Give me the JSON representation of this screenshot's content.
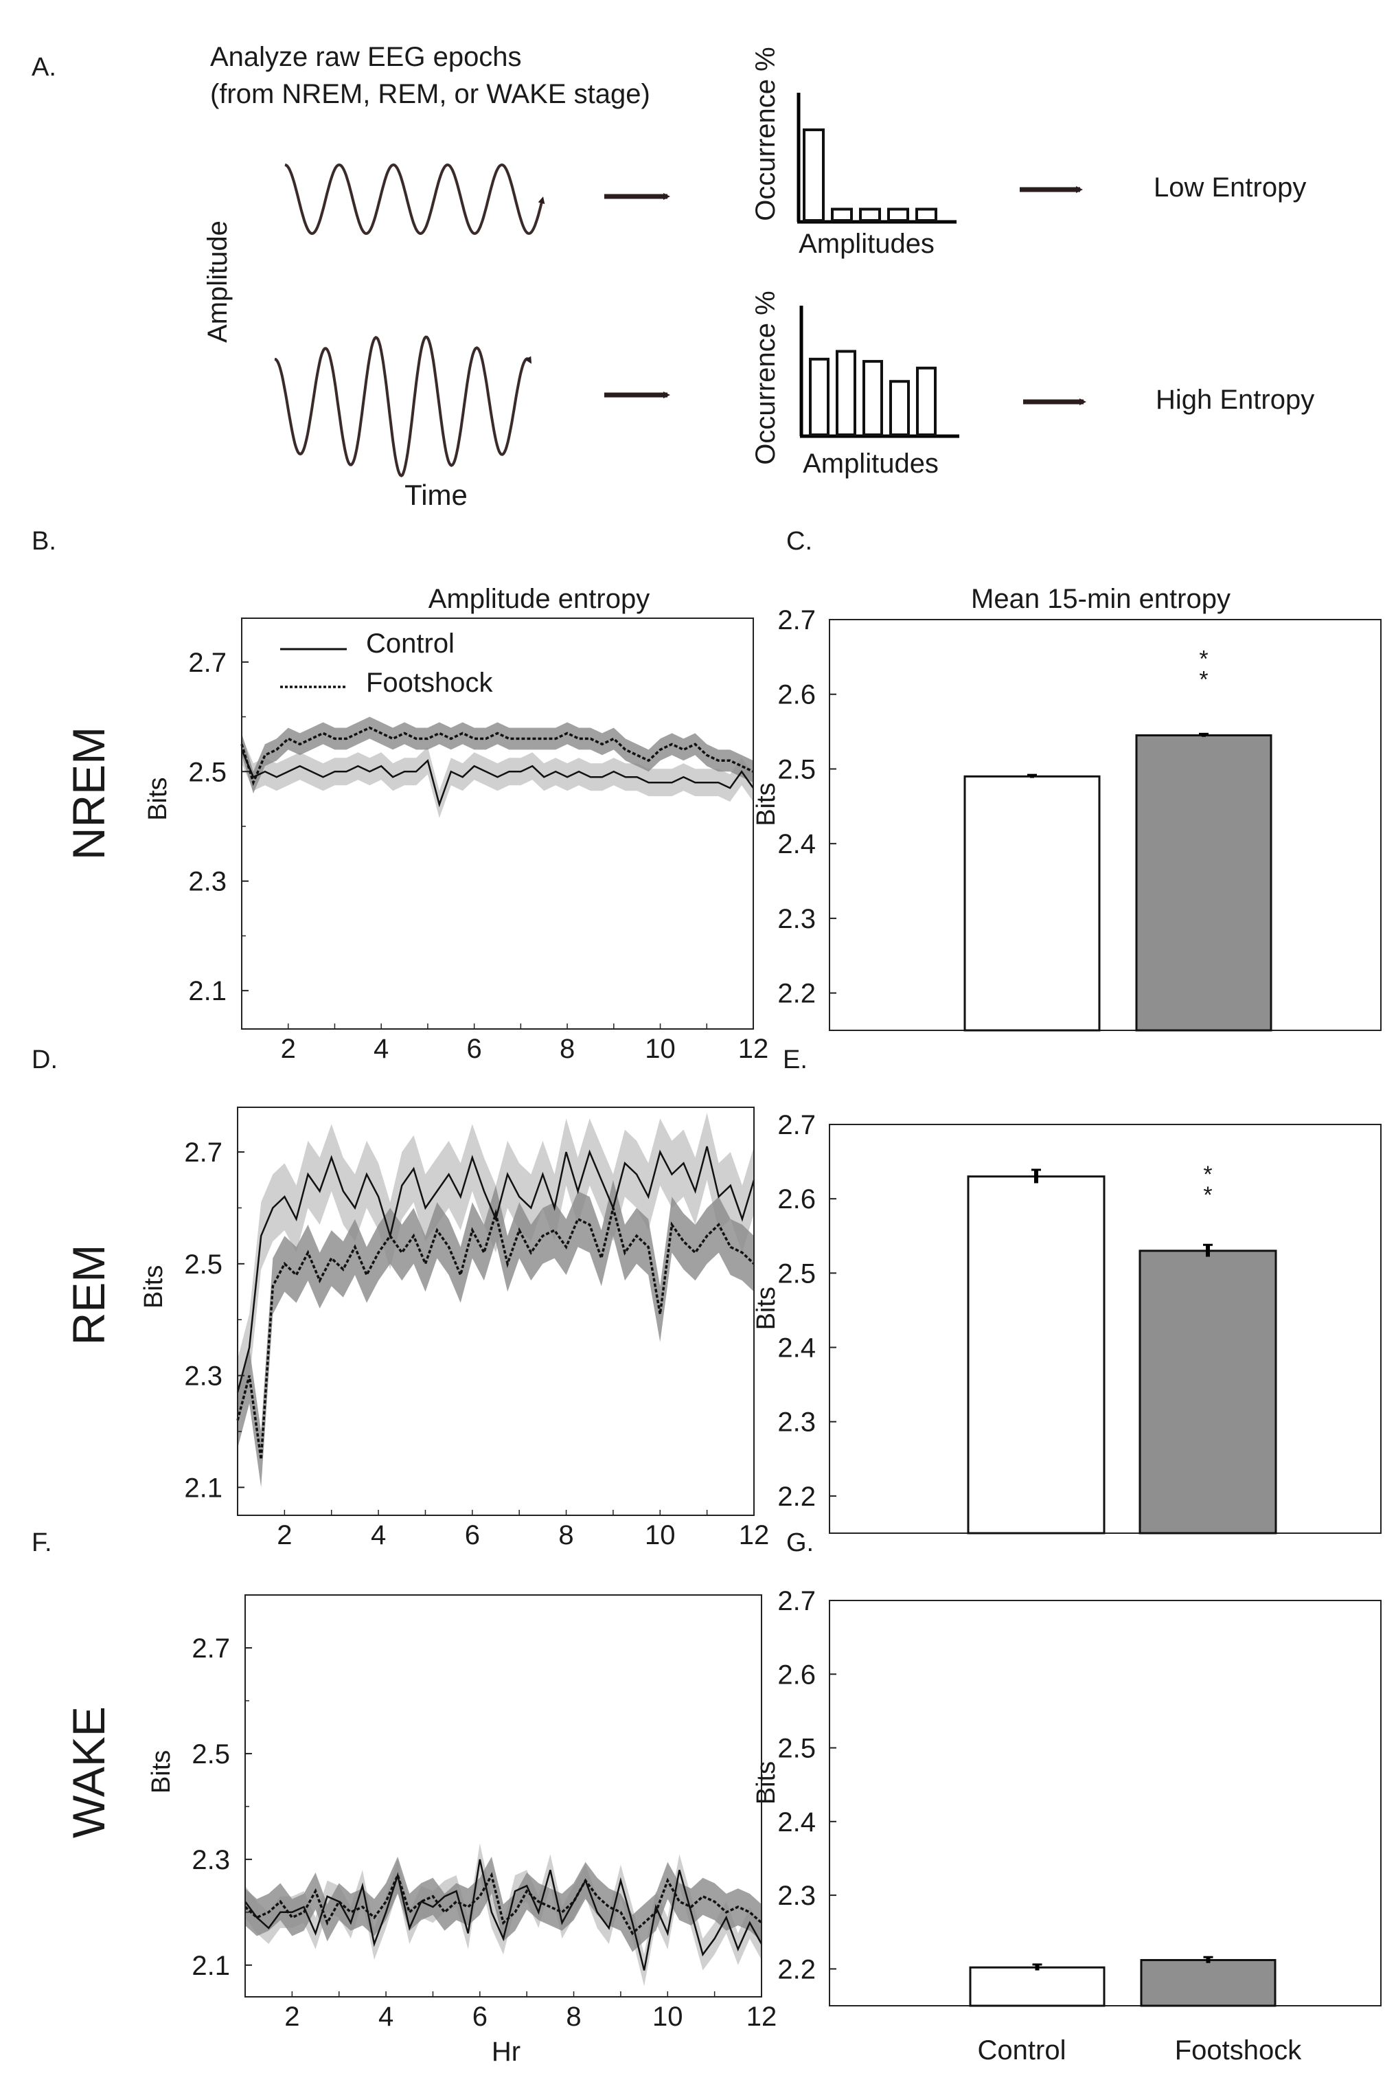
{
  "panel_labels": {
    "a": "A.",
    "b": "B.",
    "c": "C.",
    "d": "D.",
    "e": "E.",
    "f": "F.",
    "g": "G."
  },
  "schematic": {
    "title_line1": "Analyze raw EEG epochs",
    "title_line2": "(from NREM, REM, or WAKE stage)",
    "amplitude_label": "Amplitude",
    "time_label": "Time",
    "occurrence_label": "Occurrence %",
    "amplitudes_label": "Amplitudes",
    "low_entropy": "Low Entropy",
    "high_entropy": "High Entropy",
    "low_hist": [
      0.8,
      0.1,
      0.1,
      0.1,
      0.1
    ],
    "high_hist": [
      0.68,
      0.75,
      0.66,
      0.48,
      0.6
    ],
    "colors": {
      "wave": "#3a2a2a",
      "arrow": "#2b1d1d"
    }
  },
  "row_labels": {
    "nrem": "NREM",
    "rem": "REM",
    "wake": "WAKE"
  },
  "column_titles": {
    "timecourse": "Amplitude entropy",
    "bars": "Mean 15-min entropy"
  },
  "legend": {
    "control": "Control",
    "footshock": "Footshock"
  },
  "bottom_labels": {
    "hr": "Hr",
    "control": "Control",
    "footshock": "Footshock"
  },
  "chart_data": [
    {
      "id": "nrem_line",
      "type": "line",
      "title": "Amplitude entropy",
      "ylabel": "Bits",
      "xlabel": "",
      "xlim": [
        1,
        12
      ],
      "ylim": [
        2.03,
        2.78
      ],
      "yticks": [
        "2.1",
        "2.3",
        "2.5",
        "2.7"
      ],
      "xticks": [
        "2",
        "4",
        "6",
        "8",
        "10",
        "12"
      ],
      "x": [
        1.0,
        1.25,
        1.5,
        1.75,
        2.0,
        2.25,
        2.5,
        2.75,
        3.0,
        3.25,
        3.5,
        3.75,
        4.0,
        4.25,
        4.5,
        4.75,
        5.0,
        5.25,
        5.5,
        5.75,
        6.0,
        6.25,
        6.5,
        6.75,
        7.0,
        7.25,
        7.5,
        7.75,
        8.0,
        8.25,
        8.5,
        8.75,
        9.0,
        9.25,
        9.5,
        9.75,
        10.0,
        10.25,
        10.5,
        10.75,
        11.0,
        11.25,
        11.5,
        11.75,
        12.0
      ],
      "series": [
        {
          "name": "Control",
          "values": [
            2.54,
            2.49,
            2.5,
            2.49,
            2.5,
            2.51,
            2.5,
            2.49,
            2.5,
            2.5,
            2.51,
            2.5,
            2.51,
            2.49,
            2.5,
            2.5,
            2.52,
            2.44,
            2.5,
            2.49,
            2.51,
            2.5,
            2.49,
            2.5,
            2.5,
            2.51,
            2.49,
            2.5,
            2.49,
            2.5,
            2.49,
            2.49,
            2.5,
            2.49,
            2.49,
            2.48,
            2.48,
            2.48,
            2.49,
            2.48,
            2.48,
            2.48,
            2.47,
            2.5,
            2.47
          ],
          "band": 0.025
        },
        {
          "name": "Footshock",
          "values": [
            2.55,
            2.48,
            2.53,
            2.54,
            2.56,
            2.55,
            2.56,
            2.57,
            2.56,
            2.56,
            2.57,
            2.58,
            2.57,
            2.56,
            2.57,
            2.56,
            2.56,
            2.57,
            2.56,
            2.57,
            2.56,
            2.56,
            2.57,
            2.56,
            2.56,
            2.56,
            2.56,
            2.56,
            2.57,
            2.56,
            2.56,
            2.55,
            2.56,
            2.54,
            2.53,
            2.52,
            2.54,
            2.55,
            2.54,
            2.55,
            2.53,
            2.52,
            2.52,
            2.51,
            2.5
          ],
          "band": 0.02
        }
      ]
    },
    {
      "id": "nrem_bar",
      "type": "bar",
      "title": "Mean 15-min entropy",
      "ylabel": "Bits",
      "categories": [
        "Control",
        "Footshock"
      ],
      "values": [
        2.49,
        2.545
      ],
      "errors": [
        0.002,
        0.002
      ],
      "ylim": [
        2.15,
        2.7
      ],
      "yticks": [
        "2.2",
        "2.3",
        "2.4",
        "2.5",
        "2.6",
        "2.7"
      ],
      "significance": {
        "bar": 1,
        "text": "* *"
      }
    },
    {
      "id": "rem_line",
      "type": "line",
      "ylabel": "Bits",
      "xlabel": "",
      "xlim": [
        1,
        12
      ],
      "ylim": [
        2.05,
        2.78
      ],
      "yticks": [
        "2.1",
        "2.3",
        "2.5",
        "2.7"
      ],
      "xticks": [
        "2",
        "4",
        "6",
        "8",
        "10",
        "12"
      ],
      "x": [
        1.0,
        1.25,
        1.5,
        1.75,
        2.0,
        2.25,
        2.5,
        2.75,
        3.0,
        3.25,
        3.5,
        3.75,
        4.0,
        4.25,
        4.5,
        4.75,
        5.0,
        5.25,
        5.5,
        5.75,
        6.0,
        6.25,
        6.5,
        6.75,
        7.0,
        7.25,
        7.5,
        7.75,
        8.0,
        8.25,
        8.5,
        8.75,
        9.0,
        9.25,
        9.5,
        9.75,
        10.0,
        10.25,
        10.5,
        10.75,
        11.0,
        11.25,
        11.5,
        11.75,
        12.0
      ],
      "series": [
        {
          "name": "Control",
          "values": [
            2.27,
            2.35,
            2.55,
            2.6,
            2.62,
            2.58,
            2.66,
            2.63,
            2.69,
            2.63,
            2.6,
            2.66,
            2.62,
            2.55,
            2.64,
            2.67,
            2.6,
            2.63,
            2.66,
            2.62,
            2.69,
            2.63,
            2.58,
            2.66,
            2.62,
            2.6,
            2.66,
            2.6,
            2.7,
            2.63,
            2.7,
            2.65,
            2.6,
            2.68,
            2.66,
            2.62,
            2.7,
            2.66,
            2.68,
            2.63,
            2.71,
            2.62,
            2.64,
            2.58,
            2.65
          ],
          "band": 0.06
        },
        {
          "name": "Footshock",
          "values": [
            2.22,
            2.3,
            2.15,
            2.46,
            2.5,
            2.48,
            2.52,
            2.47,
            2.51,
            2.49,
            2.53,
            2.48,
            2.52,
            2.55,
            2.52,
            2.55,
            2.5,
            2.56,
            2.53,
            2.48,
            2.56,
            2.52,
            2.59,
            2.5,
            2.56,
            2.52,
            2.55,
            2.56,
            2.53,
            2.58,
            2.57,
            2.51,
            2.6,
            2.52,
            2.55,
            2.53,
            2.41,
            2.57,
            2.54,
            2.52,
            2.55,
            2.57,
            2.53,
            2.52,
            2.5
          ],
          "band": 0.05
        }
      ]
    },
    {
      "id": "rem_bar",
      "type": "bar",
      "ylabel": "Bits",
      "categories": [
        "Control",
        "Footshock"
      ],
      "values": [
        2.63,
        2.53
      ],
      "errors": [
        0.009,
        0.008
      ],
      "ylim": [
        2.15,
        2.7
      ],
      "yticks": [
        "2.2",
        "2.3",
        "2.4",
        "2.5",
        "2.6",
        "2.7"
      ],
      "significance": {
        "bar": 1,
        "text": "* *"
      }
    },
    {
      "id": "wake_line",
      "type": "line",
      "ylabel": "Bits",
      "xlabel": "Hr",
      "xlim": [
        1,
        12
      ],
      "ylim": [
        2.04,
        2.8
      ],
      "yticks": [
        "2.1",
        "2.3",
        "2.5",
        "2.7"
      ],
      "xticks": [
        "2",
        "4",
        "6",
        "8",
        "10",
        "12"
      ],
      "x": [
        1.0,
        1.25,
        1.5,
        1.75,
        2.0,
        2.25,
        2.5,
        2.75,
        3.0,
        3.25,
        3.5,
        3.75,
        4.0,
        4.25,
        4.5,
        4.75,
        5.0,
        5.25,
        5.5,
        5.75,
        6.0,
        6.25,
        6.5,
        6.75,
        7.0,
        7.25,
        7.5,
        7.75,
        8.0,
        8.25,
        8.5,
        8.75,
        9.0,
        9.25,
        9.5,
        9.75,
        10.0,
        10.25,
        10.5,
        10.75,
        11.0,
        11.25,
        11.5,
        11.75,
        12.0
      ],
      "series": [
        {
          "name": "Control",
          "values": [
            2.22,
            2.19,
            2.17,
            2.2,
            2.2,
            2.21,
            2.16,
            2.23,
            2.22,
            2.18,
            2.25,
            2.14,
            2.2,
            2.27,
            2.17,
            2.22,
            2.21,
            2.23,
            2.24,
            2.16,
            2.3,
            2.2,
            2.15,
            2.24,
            2.25,
            2.2,
            2.28,
            2.18,
            2.22,
            2.26,
            2.2,
            2.17,
            2.26,
            2.18,
            2.09,
            2.21,
            2.16,
            2.28,
            2.2,
            2.12,
            2.15,
            2.19,
            2.13,
            2.18,
            2.14
          ],
          "band": 0.03
        },
        {
          "name": "Footshock",
          "values": [
            2.21,
            2.19,
            2.2,
            2.22,
            2.19,
            2.2,
            2.24,
            2.18,
            2.22,
            2.2,
            2.21,
            2.19,
            2.22,
            2.27,
            2.2,
            2.22,
            2.23,
            2.2,
            2.22,
            2.21,
            2.23,
            2.27,
            2.18,
            2.2,
            2.24,
            2.22,
            2.21,
            2.2,
            2.22,
            2.26,
            2.23,
            2.21,
            2.2,
            2.16,
            2.18,
            2.2,
            2.26,
            2.22,
            2.21,
            2.23,
            2.22,
            2.2,
            2.21,
            2.2,
            2.18
          ],
          "band": 0.035
        }
      ]
    },
    {
      "id": "wake_bar",
      "type": "bar",
      "ylabel": "Bits",
      "categories": [
        "Control",
        "Footshock"
      ],
      "values": [
        2.202,
        2.212
      ],
      "errors": [
        0.004,
        0.004
      ],
      "ylim": [
        2.15,
        2.7
      ],
      "yticks": [
        "2.2",
        "2.3",
        "2.4",
        "2.5",
        "2.6",
        "2.7"
      ]
    }
  ]
}
